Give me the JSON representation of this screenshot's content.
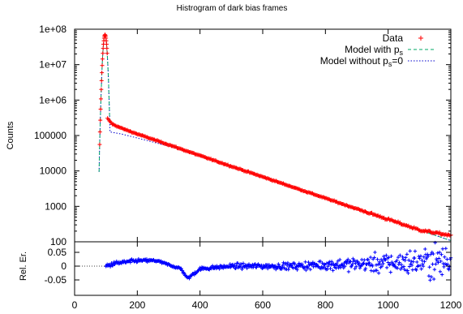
{
  "chart_data": [
    {
      "type": "scatter",
      "title": "Histrogram of dark bias frames",
      "xlabel": "",
      "ylabel": "Counts",
      "yscale": "log",
      "xlim": [
        0,
        1200
      ],
      "ylim": [
        100,
        100000000
      ],
      "grid": false,
      "legend_position": "top-right",
      "x_ticks": [
        "0",
        "200",
        "400",
        "600",
        "800",
        "1000",
        "1200"
      ],
      "y_ticks": [
        "100",
        "1000",
        "10000",
        "100000",
        "1e+06",
        "1e+07",
        "1e+08"
      ],
      "colors": {
        "data": "#ff0000",
        "model_ps": "#00aa66",
        "model_no_ps": "#0000cc",
        "residual": "#0000ff",
        "frame": "#000000"
      },
      "legend": [
        {
          "key": "data",
          "prefix": "Data",
          "sub": "",
          "suffix": ""
        },
        {
          "key": "model_ps",
          "prefix": "Model with p",
          "sub": "s",
          "suffix": ""
        },
        {
          "key": "model_no_ps",
          "prefix": "Model without p",
          "sub": "s",
          "suffix": "=0"
        }
      ],
      "series": [
        {
          "name": "Data",
          "style": "points",
          "description": "Gaussian bias peak near x=97 (max ~7e7), sharp drop to ~3e5 at x≈105, then exponential tail decreasing to ~150 at x=1200",
          "peak": {
            "x": 97,
            "y": 70000000,
            "sigma": 4.5
          },
          "tail_points": [
            [
              105,
              300000
            ],
            [
              120,
              210000
            ],
            [
              150,
              160000
            ],
            [
              200,
              110000
            ],
            [
              300,
              55000
            ],
            [
              400,
              27000
            ],
            [
              500,
              13500
            ],
            [
              600,
              6800
            ],
            [
              700,
              3400
            ],
            [
              800,
              1700
            ],
            [
              900,
              850
            ],
            [
              1000,
              430
            ],
            [
              1100,
              215
            ],
            [
              1200,
              150
            ]
          ]
        },
        {
          "name": "Model with ps",
          "style": "dashed",
          "tail_points": [
            [
              105,
              300000
            ],
            [
              120,
              210000
            ],
            [
              150,
              160000
            ],
            [
              200,
              110000
            ],
            [
              300,
              55000
            ],
            [
              400,
              27000
            ],
            [
              500,
              13500
            ],
            [
              600,
              6800
            ],
            [
              700,
              3400
            ],
            [
              800,
              1700
            ],
            [
              900,
              850
            ],
            [
              1000,
              430
            ],
            [
              1100,
              215
            ],
            [
              1200,
              108
            ]
          ]
        },
        {
          "name": "Model without ps=0",
          "style": "dotted",
          "tail_points": [
            [
              105,
              130000
            ],
            [
              150,
              110000
            ],
            [
              200,
              85000
            ],
            [
              300,
              50000
            ],
            [
              400,
              27000
            ],
            [
              500,
              13500
            ],
            [
              600,
              6800
            ],
            [
              700,
              3400
            ],
            [
              800,
              1700
            ],
            [
              900,
              850
            ],
            [
              1000,
              430
            ],
            [
              1100,
              215
            ],
            [
              1200,
              108
            ]
          ]
        }
      ]
    },
    {
      "type": "scatter",
      "ylabel": "Rel. Er.",
      "xlim": [
        0,
        1200
      ],
      "ylim": [
        -0.1,
        0.1
      ],
      "x_ticks": [
        "0",
        "200",
        "400",
        "600",
        "800",
        "1000",
        "1200"
      ],
      "y_ticks": [
        "0.05",
        "0",
        "-0.05"
      ],
      "y_tick_values": [
        0.05,
        0,
        -0.05
      ],
      "grid": false,
      "series": [
        {
          "name": "Relative error",
          "style": "points",
          "description": "Relative error starts at x≈100; about 0.02 near x=200-300, dips to -0.05 near x=360, centred near 0 to x=700, scatter widening to ±0.1 toward x=1200",
          "trend": [
            [
              100,
              0.0
            ],
            [
              130,
              0.01
            ],
            [
              200,
              0.02
            ],
            [
              260,
              0.02
            ],
            [
              300,
              0.005
            ],
            [
              340,
              -0.01
            ],
            [
              360,
              -0.045
            ],
            [
              400,
              -0.01
            ],
            [
              500,
              0.0
            ],
            [
              600,
              0.0
            ],
            [
              700,
              0.0
            ],
            [
              800,
              0.005
            ],
            [
              1000,
              0.01
            ],
            [
              1200,
              0.02
            ]
          ],
          "spread": [
            [
              100,
              0.01
            ],
            [
              300,
              0.005
            ],
            [
              500,
              0.01
            ],
            [
              700,
              0.015
            ],
            [
              900,
              0.03
            ],
            [
              1100,
              0.06
            ],
            [
              1200,
              0.08
            ]
          ]
        }
      ]
    }
  ]
}
